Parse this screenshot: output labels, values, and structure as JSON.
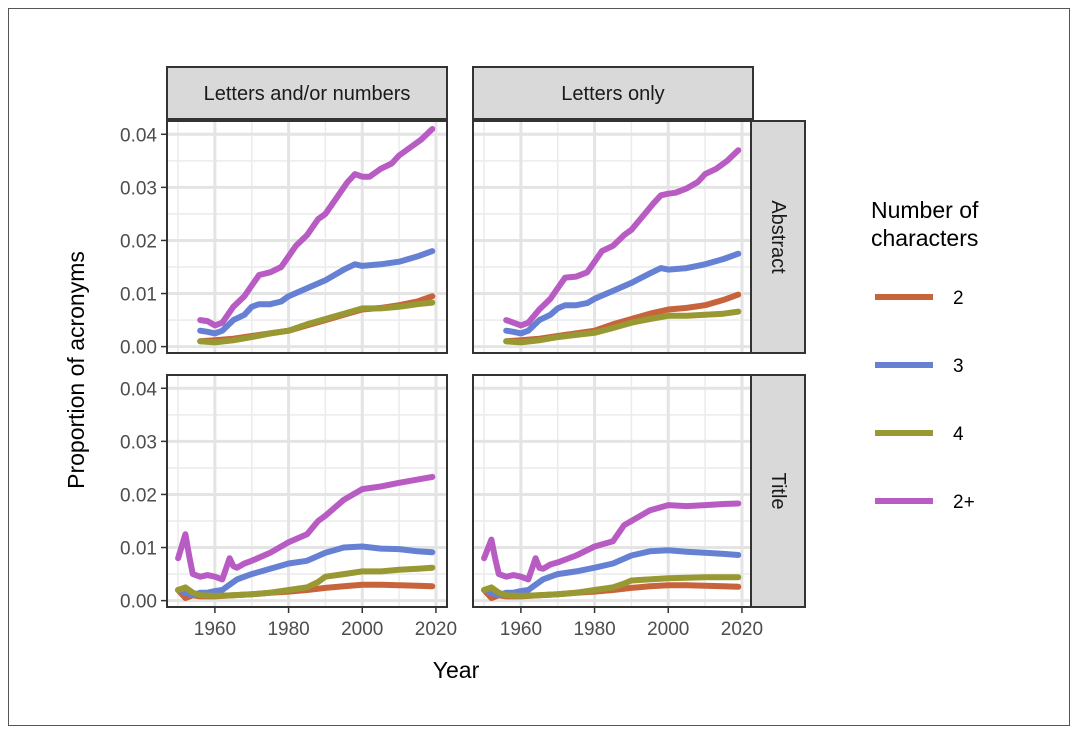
{
  "chart_data": {
    "type": "line",
    "xlabel": "Year",
    "ylabel": "Proportion of acronyms",
    "xlim": [
      1947,
      2023
    ],
    "ylim": [
      -0.0012,
      0.0425
    ],
    "x_ticks": [
      1960,
      1980,
      2000,
      2020
    ],
    "y_ticks": [
      0.0,
      0.01,
      0.02,
      0.03,
      0.04
    ],
    "y_tick_labels": [
      "0.00",
      "0.01",
      "0.02",
      "0.03",
      "0.04"
    ],
    "x_tick_labels": [
      "1960",
      "1980",
      "2000",
      "2020"
    ],
    "grid": true,
    "facet_columns": [
      "Letters and/or numbers",
      "Letters only"
    ],
    "facet_rows": [
      "Abstract",
      "Title"
    ],
    "legend": {
      "title_lines": [
        "Number of",
        "characters"
      ],
      "placement": "right",
      "entries": [
        {
          "label": "2",
          "color": "#C8643C"
        },
        {
          "label": "3",
          "color": "#6680D4"
        },
        {
          "label": "4",
          "color": "#999933"
        },
        {
          "label": "2+",
          "color": "#B85CC4"
        }
      ]
    },
    "panels": [
      {
        "column": "Letters and/or numbers",
        "row": "Abstract",
        "series": [
          {
            "name": "2",
            "x": [
              1956,
              1960,
              1965,
              1970,
              1975,
              1980,
              1985,
              1990,
              1995,
              2000,
              2005,
              2010,
              2015,
              2019
            ],
            "y": [
              0.001,
              0.0012,
              0.0015,
              0.002,
              0.0025,
              0.003,
              0.004,
              0.005,
              0.006,
              0.007,
              0.0073,
              0.0078,
              0.0085,
              0.0095
            ]
          },
          {
            "name": "3",
            "x": [
              1956,
              1958,
              1960,
              1962,
              1965,
              1968,
              1970,
              1972,
              1975,
              1978,
              1980,
              1985,
              1990,
              1995,
              1998,
              2000,
              2005,
              2010,
              2015,
              2019
            ],
            "y": [
              0.003,
              0.0028,
              0.0025,
              0.003,
              0.005,
              0.006,
              0.0075,
              0.008,
              0.008,
              0.0085,
              0.0095,
              0.011,
              0.0125,
              0.0145,
              0.0155,
              0.0152,
              0.0155,
              0.016,
              0.017,
              0.018
            ]
          },
          {
            "name": "4",
            "x": [
              1956,
              1960,
              1965,
              1970,
              1975,
              1980,
              1985,
              1990,
              1995,
              2000,
              2005,
              2010,
              2015,
              2019
            ],
            "y": [
              0.001,
              0.0008,
              0.0012,
              0.0018,
              0.0025,
              0.003,
              0.0042,
              0.0052,
              0.0062,
              0.0072,
              0.0072,
              0.0075,
              0.008,
              0.0083
            ]
          },
          {
            "name": "2+",
            "x": [
              1956,
              1958,
              1960,
              1962,
              1965,
              1968,
              1970,
              1972,
              1975,
              1978,
              1980,
              1982,
              1985,
              1988,
              1990,
              1993,
              1996,
              1998,
              2000,
              2002,
              2005,
              2008,
              2010,
              2013,
              2016,
              2019
            ],
            "y": [
              0.005,
              0.0048,
              0.004,
              0.0045,
              0.0075,
              0.0095,
              0.0115,
              0.0135,
              0.014,
              0.015,
              0.017,
              0.019,
              0.021,
              0.024,
              0.025,
              0.028,
              0.031,
              0.0325,
              0.032,
              0.032,
              0.0335,
              0.0345,
              0.036,
              0.0375,
              0.039,
              0.041
            ]
          }
        ]
      },
      {
        "column": "Letters only",
        "row": "Abstract",
        "series": [
          {
            "name": "2",
            "x": [
              1956,
              1960,
              1965,
              1970,
              1975,
              1980,
              1985,
              1990,
              1995,
              2000,
              2005,
              2010,
              2015,
              2019
            ],
            "y": [
              0.001,
              0.0012,
              0.0015,
              0.002,
              0.0025,
              0.003,
              0.0042,
              0.0052,
              0.0062,
              0.007,
              0.0073,
              0.0078,
              0.0088,
              0.0098
            ]
          },
          {
            "name": "3",
            "x": [
              1956,
              1958,
              1960,
              1962,
              1965,
              1968,
              1970,
              1972,
              1975,
              1978,
              1980,
              1985,
              1990,
              1995,
              1998,
              2000,
              2005,
              2010,
              2015,
              2019
            ],
            "y": [
              0.003,
              0.0028,
              0.0025,
              0.003,
              0.005,
              0.006,
              0.0072,
              0.0078,
              0.0078,
              0.0082,
              0.009,
              0.0105,
              0.012,
              0.0138,
              0.0148,
              0.0145,
              0.0148,
              0.0155,
              0.0165,
              0.0175
            ]
          },
          {
            "name": "4",
            "x": [
              1956,
              1960,
              1965,
              1970,
              1975,
              1980,
              1985,
              1990,
              1995,
              2000,
              2005,
              2010,
              2015,
              2019
            ],
            "y": [
              0.001,
              0.0008,
              0.0012,
              0.0018,
              0.0022,
              0.0026,
              0.0035,
              0.0045,
              0.0052,
              0.0058,
              0.0058,
              0.006,
              0.0062,
              0.0066
            ]
          },
          {
            "name": "2+",
            "x": [
              1956,
              1958,
              1960,
              1962,
              1965,
              1968,
              1970,
              1972,
              1975,
              1978,
              1980,
              1982,
              1985,
              1988,
              1990,
              1993,
              1996,
              1998,
              2000,
              2002,
              2005,
              2008,
              2010,
              2013,
              2016,
              2019
            ],
            "y": [
              0.005,
              0.0045,
              0.004,
              0.0045,
              0.007,
              0.009,
              0.011,
              0.013,
              0.0132,
              0.014,
              0.016,
              0.018,
              0.019,
              0.021,
              0.022,
              0.0245,
              0.027,
              0.0285,
              0.0288,
              0.029,
              0.0298,
              0.031,
              0.0325,
              0.0335,
              0.035,
              0.037
            ]
          }
        ]
      },
      {
        "column": "Letters and/or numbers",
        "row": "Title",
        "series": [
          {
            "name": "2",
            "x": [
              1950,
              1952,
              1954,
              1956,
              1960,
              1965,
              1970,
              1975,
              1980,
              1985,
              1990,
              1995,
              2000,
              2005,
              2010,
              2015,
              2019
            ],
            "y": [
              0.002,
              0.0005,
              0.001,
              0.0008,
              0.0008,
              0.001,
              0.0012,
              0.0015,
              0.0017,
              0.002,
              0.0024,
              0.0027,
              0.003,
              0.003,
              0.0029,
              0.0028,
              0.0027
            ]
          },
          {
            "name": "3",
            "x": [
              1950,
              1952,
              1954,
              1956,
              1958,
              1960,
              1962,
              1964,
              1966,
              1968,
              1970,
              1975,
              1980,
              1985,
              1990,
              1995,
              2000,
              2005,
              2010,
              2015,
              2019
            ],
            "y": [
              0.002,
              0.0015,
              0.001,
              0.0015,
              0.0015,
              0.0018,
              0.002,
              0.003,
              0.004,
              0.0045,
              0.005,
              0.006,
              0.007,
              0.0075,
              0.009,
              0.01,
              0.0102,
              0.0098,
              0.0097,
              0.0093,
              0.0091
            ]
          },
          {
            "name": "4",
            "x": [
              1950,
              1952,
              1954,
              1956,
              1960,
              1965,
              1970,
              1975,
              1980,
              1985,
              1988,
              1990,
              1995,
              2000,
              2005,
              2010,
              2015,
              2019
            ],
            "y": [
              0.002,
              0.0025,
              0.0015,
              0.001,
              0.0009,
              0.001,
              0.0012,
              0.0015,
              0.002,
              0.0025,
              0.0035,
              0.0045,
              0.005,
              0.0055,
              0.0055,
              0.0058,
              0.006,
              0.0062
            ]
          },
          {
            "name": "2+",
            "x": [
              1950,
              1952,
              1953,
              1954,
              1956,
              1958,
              1960,
              1962,
              1964,
              1965,
              1966,
              1968,
              1970,
              1975,
              1980,
              1985,
              1988,
              1990,
              1995,
              2000,
              2005,
              2010,
              2015,
              2019
            ],
            "y": [
              0.008,
              0.0125,
              0.0085,
              0.005,
              0.0045,
              0.0048,
              0.0045,
              0.004,
              0.008,
              0.0065,
              0.0062,
              0.007,
              0.0075,
              0.009,
              0.011,
              0.0125,
              0.015,
              0.016,
              0.019,
              0.021,
              0.0215,
              0.0222,
              0.0228,
              0.0233
            ]
          }
        ]
      },
      {
        "column": "Letters only",
        "row": "Title",
        "series": [
          {
            "name": "2",
            "x": [
              1950,
              1952,
              1954,
              1956,
              1960,
              1965,
              1970,
              1975,
              1980,
              1985,
              1990,
              1995,
              2000,
              2005,
              2010,
              2015,
              2019
            ],
            "y": [
              0.002,
              0.0005,
              0.001,
              0.0008,
              0.0008,
              0.001,
              0.0012,
              0.0015,
              0.0017,
              0.002,
              0.0024,
              0.0027,
              0.0029,
              0.0029,
              0.0028,
              0.0027,
              0.0026
            ]
          },
          {
            "name": "3",
            "x": [
              1950,
              1952,
              1954,
              1956,
              1958,
              1960,
              1962,
              1964,
              1966,
              1968,
              1970,
              1975,
              1980,
              1985,
              1990,
              1995,
              2000,
              2005,
              2010,
              2015,
              2019
            ],
            "y": [
              0.002,
              0.0015,
              0.001,
              0.0015,
              0.0015,
              0.0018,
              0.002,
              0.003,
              0.004,
              0.0045,
              0.005,
              0.0055,
              0.0062,
              0.007,
              0.0085,
              0.0093,
              0.0095,
              0.0092,
              0.009,
              0.0088,
              0.0086
            ]
          },
          {
            "name": "4",
            "x": [
              1950,
              1952,
              1954,
              1956,
              1960,
              1965,
              1970,
              1975,
              1980,
              1985,
              1988,
              1990,
              1995,
              2000,
              2005,
              2010,
              2015,
              2019
            ],
            "y": [
              0.002,
              0.0025,
              0.0015,
              0.001,
              0.0009,
              0.001,
              0.0012,
              0.0015,
              0.002,
              0.0025,
              0.0032,
              0.0038,
              0.004,
              0.0042,
              0.0043,
              0.0044,
              0.0044,
              0.0044
            ]
          },
          {
            "name": "2+",
            "x": [
              1950,
              1952,
              1953,
              1954,
              1956,
              1958,
              1960,
              1962,
              1964,
              1965,
              1966,
              1968,
              1970,
              1975,
              1980,
              1985,
              1988,
              1990,
              1995,
              2000,
              2005,
              2010,
              2015,
              2019
            ],
            "y": [
              0.008,
              0.0115,
              0.008,
              0.005,
              0.0045,
              0.0048,
              0.0045,
              0.004,
              0.008,
              0.0062,
              0.006,
              0.0068,
              0.0072,
              0.0085,
              0.0102,
              0.0112,
              0.0142,
              0.015,
              0.017,
              0.018,
              0.0178,
              0.018,
              0.0182,
              0.0183
            ]
          }
        ]
      }
    ]
  }
}
